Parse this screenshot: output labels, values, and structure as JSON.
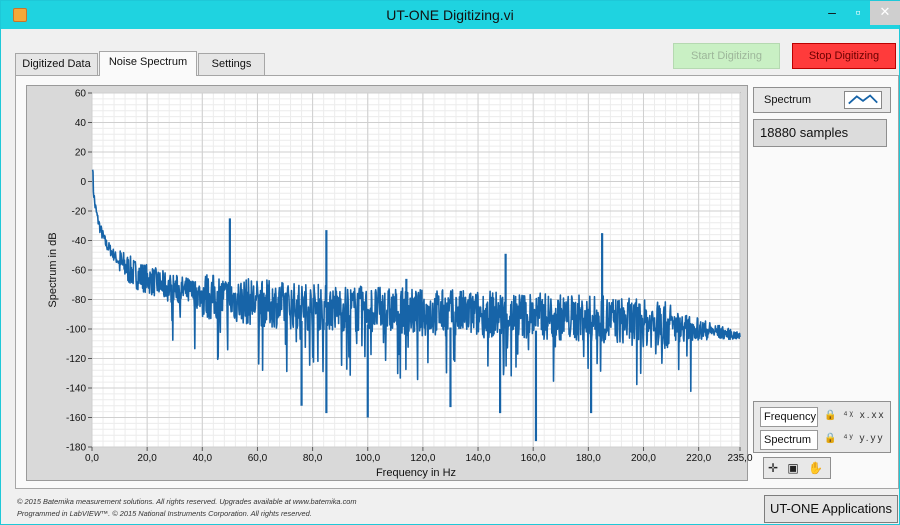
{
  "window": {
    "title": "UT-ONE Digitizing.vi",
    "min_glyph": "–",
    "max_glyph": "▫",
    "close_glyph": "✕"
  },
  "tabs": [
    {
      "label": "Digitized Data",
      "active": false
    },
    {
      "label": "Noise Spectrum",
      "active": true
    },
    {
      "label": "Settings",
      "active": false
    }
  ],
  "buttons": {
    "start_label": "Start Digitizing",
    "stop_label": "Stop Digitizing",
    "start_color": "#c9f0c4",
    "stop_color": "#ff3b3b"
  },
  "legend": {
    "plot_name": "Spectrum",
    "samples": "18880 samples"
  },
  "scale_legend": {
    "x_name": "Frequency",
    "y_name": "Spectrum",
    "x_icons": "🔒 ⁴ᵡ x.xx",
    "y_icons": "🔒 ⁴ʸ y.yy"
  },
  "graph_palette": {
    "glyphs": "✛ ▣ ✋"
  },
  "footer": {
    "line1": "© 2015 Batemika measurement solutions. All rights reserved. Upgrades available at www.batemika.com",
    "line2": "Programmed in LabVIEW™. © 2015 National Instruments Corporation. All rights reserved."
  },
  "apps_button_label": "UT-ONE Applications",
  "chart_data": {
    "type": "line",
    "xlabel": "Frequency in Hz",
    "ylabel": "Spectrum in dB",
    "xlim": [
      0,
      235
    ],
    "ylim": [
      -180,
      60
    ],
    "x_ticks": [
      "0,0",
      "20,0",
      "40,0",
      "60,0",
      "80,0",
      "100,0",
      "120,0",
      "140,0",
      "160,0",
      "180,0",
      "200,0",
      "220,0",
      "235,0"
    ],
    "x_tick_values": [
      0,
      20,
      40,
      60,
      80,
      100,
      120,
      140,
      160,
      180,
      200,
      220,
      235
    ],
    "y_ticks": [
      60,
      40,
      20,
      0,
      -20,
      -40,
      -60,
      -80,
      -100,
      -120,
      -140,
      -160,
      -180
    ],
    "grid": true,
    "line_color": "#1764a8",
    "series": [
      {
        "x": [
          0.2,
          0.5,
          1,
          2,
          3,
          5,
          8,
          10,
          15,
          20,
          25,
          30,
          35,
          40,
          45,
          50,
          60,
          70,
          80,
          90,
          100,
          110,
          120,
          130,
          140,
          150,
          160,
          170,
          180,
          190,
          200,
          210,
          220,
          230,
          235
        ],
        "y": [
          12,
          -5,
          -15,
          -25,
          -32,
          -42,
          -50,
          -55,
          -62,
          -66,
          -70,
          -73,
          -75,
          -77,
          -79,
          -80,
          -82,
          -84,
          -85,
          -86,
          -87,
          -88,
          -89,
          -89,
          -90,
          -90,
          -91,
          -92,
          -93,
          -94,
          -96,
          -98,
          -100,
          -103,
          -105
        ]
      }
    ],
    "peaks": [
      {
        "x": 50,
        "y": -25
      },
      {
        "x": 85,
        "y": -33
      },
      {
        "x": 114,
        "y": -66
      },
      {
        "x": 150,
        "y": -49
      },
      {
        "x": 185,
        "y": -35
      }
    ],
    "dips": [
      {
        "x": 76,
        "y": -152
      },
      {
        "x": 85,
        "y": -157
      },
      {
        "x": 100,
        "y": -160
      },
      {
        "x": 130,
        "y": -153
      },
      {
        "x": 148,
        "y": -157
      },
      {
        "x": 161,
        "y": -176
      },
      {
        "x": 181,
        "y": -157
      }
    ]
  }
}
